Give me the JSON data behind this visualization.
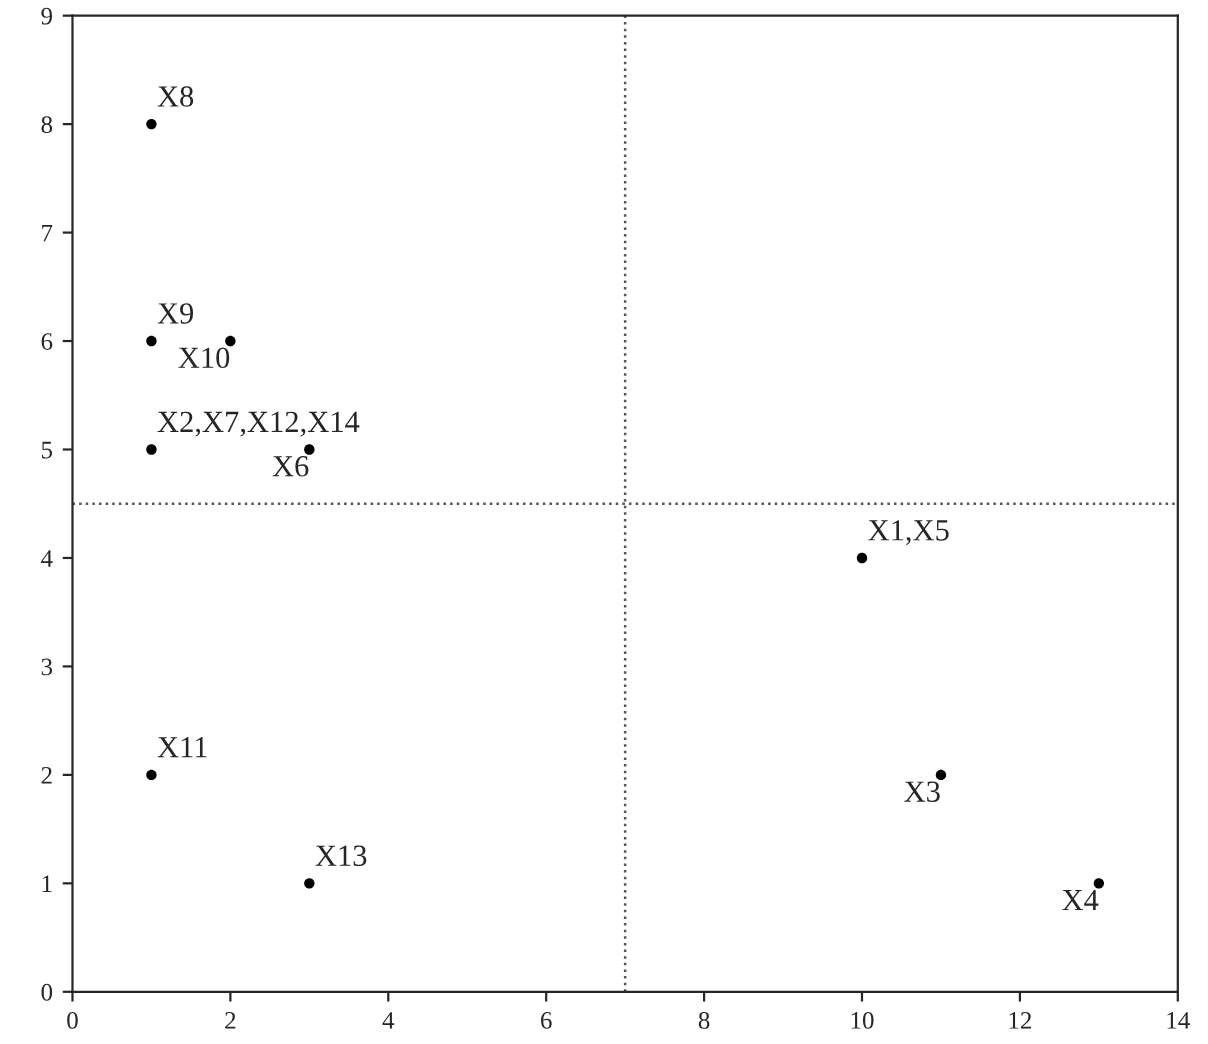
{
  "chart_data": {
    "type": "scatter",
    "x": [
      1,
      1,
      2,
      1,
      3,
      10,
      1,
      11,
      3,
      13
    ],
    "series": [
      {
        "color": "#000000",
        "values": [
          8,
          6,
          6,
          5,
          5,
          4,
          2,
          2,
          1,
          1
        ]
      }
    ],
    "xlim": [
      0,
      14
    ],
    "ylim": [
      0,
      9
    ],
    "xticks": [
      0,
      2,
      4,
      6,
      8,
      10,
      12,
      14
    ],
    "yticks": [
      0,
      1,
      2,
      3,
      4,
      5,
      6,
      7,
      8,
      9
    ],
    "grid": false,
    "legend": false,
    "marker": "circle",
    "ref_lines": [
      {
        "axis": "x",
        "value": 7,
        "line_style": "dotted",
        "color": "#555555"
      },
      {
        "axis": "y",
        "value": 4.5,
        "line_style": "dotted",
        "color": "#555555"
      }
    ],
    "annotations": [
      {
        "text": "X8",
        "x": 1,
        "y": 8
      },
      {
        "text": "X9",
        "x": 1,
        "y": 6
      },
      {
        "text": "X10",
        "x": 2,
        "y": 6
      },
      {
        "text": "X2,X7,X12,X14",
        "x": 1,
        "y": 5
      },
      {
        "text": "X6",
        "x": 3,
        "y": 5
      },
      {
        "text": "X1,X5",
        "x": 10,
        "y": 4
      },
      {
        "text": "X11",
        "x": 1,
        "y": 2
      },
      {
        "text": "X3",
        "x": 11,
        "y": 2
      },
      {
        "text": "X13",
        "x": 3,
        "y": 1
      },
      {
        "text": "X4",
        "x": 13,
        "y": 1
      }
    ]
  }
}
